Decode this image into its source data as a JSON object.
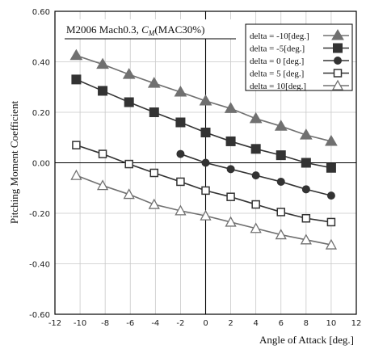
{
  "chart_data": {
    "type": "line",
    "title_main": "M2006  Mach0.3, ",
    "title_sym": "C",
    "title_sub": "M",
    "title_tail": "(MAC30%)",
    "xlabel": "Angle of Attack [deg.]",
    "ylabel": "Pitching Moment Coefficient",
    "xlim": [
      -12,
      12
    ],
    "ylim": [
      -0.6,
      0.6
    ],
    "x_ticks": [
      "-12",
      "-10",
      "-8",
      "-6",
      "-4",
      "-2",
      "0",
      "2",
      "4",
      "6",
      "8",
      "10",
      "12"
    ],
    "y_ticks": [
      "-0.60",
      "-0.40",
      "-0.20",
      "0.00",
      "0.20",
      "0.40",
      "0.60"
    ],
    "grid": true,
    "legend_position": "top-right",
    "series": [
      {
        "name": "delta = -10[deg.]",
        "marker": "filled-triangle",
        "x": [
          -10.3,
          -8.2,
          -6.1,
          -4.1,
          -2.0,
          0.0,
          2.0,
          4.0,
          6.0,
          8.0,
          10.0
        ],
        "y": [
          0.425,
          0.39,
          0.35,
          0.315,
          0.28,
          0.245,
          0.215,
          0.175,
          0.145,
          0.11,
          0.085
        ]
      },
      {
        "name": "delta =  -5[deg.]",
        "marker": "filled-square",
        "x": [
          -10.3,
          -8.2,
          -6.1,
          -4.1,
          -2.0,
          0.0,
          2.0,
          4.0,
          6.0,
          8.0,
          10.0
        ],
        "y": [
          0.33,
          0.285,
          0.24,
          0.2,
          0.16,
          0.12,
          0.085,
          0.055,
          0.03,
          0.0,
          -0.02
        ]
      },
      {
        "name": "delta =   0 [deg.]",
        "marker": "filled-circle",
        "x": [
          -2.0,
          0.0,
          2.0,
          4.0,
          6.0,
          8.0,
          10.0
        ],
        "y": [
          0.035,
          0.0,
          -0.025,
          -0.05,
          -0.075,
          -0.105,
          -0.13
        ]
      },
      {
        "name": "delta =   5 [deg.]",
        "marker": "open-square",
        "x": [
          -10.3,
          -8.2,
          -6.1,
          -4.1,
          -2.0,
          0.0,
          2.0,
          4.0,
          6.0,
          8.0,
          10.0
        ],
        "y": [
          0.07,
          0.035,
          -0.005,
          -0.04,
          -0.075,
          -0.11,
          -0.135,
          -0.165,
          -0.195,
          -0.22,
          -0.235
        ]
      },
      {
        "name": "delta =  10[deg.]",
        "marker": "open-triangle",
        "x": [
          -10.3,
          -8.2,
          -6.1,
          -4.1,
          -2.0,
          0.0,
          2.0,
          4.0,
          6.0,
          8.0,
          10.0
        ],
        "y": [
          -0.05,
          -0.09,
          -0.125,
          -0.165,
          -0.19,
          -0.21,
          -0.235,
          -0.26,
          -0.285,
          -0.305,
          -0.325
        ]
      }
    ]
  }
}
